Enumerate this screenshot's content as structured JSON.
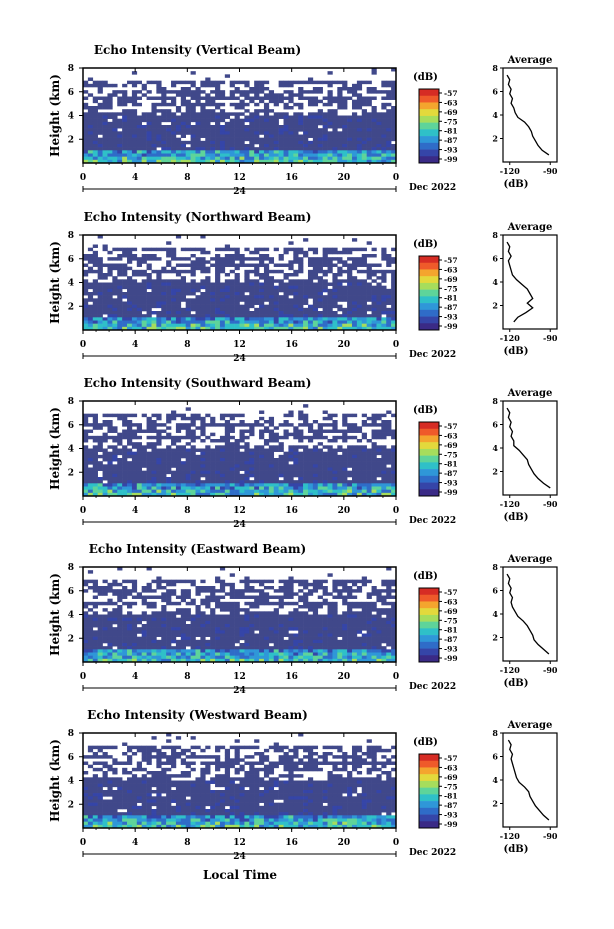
{
  "figure": {
    "date_label": "Dec 2022",
    "xlabel_bottom": "Local Time",
    "day_label": "24"
  },
  "colorbar": {
    "unit": "(dB)",
    "ticks": [
      "-57",
      "-63",
      "-69",
      "-75",
      "-81",
      "-87",
      "-93",
      "-99"
    ]
  },
  "colors": {
    "frame": "#000000",
    "background": "#ffffff",
    "echo_base": "#40488a",
    "scale": [
      "#3a2a86",
      "#3545a8",
      "#2f6cc8",
      "#2f97d8",
      "#2fc0c8",
      "#5ed49a",
      "#a6dd5c",
      "#e3d93c",
      "#f4a52e",
      "#ef5a2a",
      "#d62c24"
    ]
  },
  "chart_data": [
    {
      "type": "heatmap",
      "title": "Echo Intensity (Vertical Beam)",
      "ylabel": "Height (km)",
      "x_ticks": [
        "0",
        "4",
        "8",
        "12",
        "16",
        "20",
        "0"
      ],
      "y_ticks": [
        "2",
        "4",
        "6",
        "8"
      ],
      "xlim": [
        0,
        24
      ],
      "ylim": [
        0,
        8
      ],
      "z_unit": "dB",
      "z_range": [
        -99,
        -57
      ],
      "profile": {
        "title": "Average",
        "xlabel": "(dB)",
        "x_ticks": [
          "-120",
          "-90"
        ],
        "xlim": [
          -125,
          -85
        ],
        "y_ticks": [
          "2",
          "4",
          "6",
          "8"
        ],
        "ylim": [
          0,
          8
        ],
        "height": [
          0.6,
          1.0,
          1.4,
          1.8,
          2.2,
          2.6,
          3.0,
          3.4,
          3.8,
          4.2,
          4.6,
          5.0,
          5.4,
          5.8,
          6.2,
          6.6,
          7.0,
          7.4
        ],
        "value": [
          -91,
          -96,
          -99,
          -101,
          -103,
          -104,
          -106,
          -109,
          -114,
          -116,
          -117,
          -119,
          -118,
          -120,
          -119,
          -121,
          -120,
          -122
        ]
      }
    },
    {
      "type": "heatmap",
      "title": "Echo Intensity (Northward Beam)",
      "ylabel": "Height (km)",
      "x_ticks": [
        "0",
        "4",
        "8",
        "12",
        "16",
        "20",
        "0"
      ],
      "y_ticks": [
        "2",
        "4",
        "6",
        "8"
      ],
      "xlim": [
        0,
        24
      ],
      "ylim": [
        0,
        8
      ],
      "z_unit": "dB",
      "z_range": [
        -99,
        -57
      ],
      "profile": {
        "title": "Average",
        "xlabel": "(dB)",
        "x_ticks": [
          "-120",
          "-90"
        ],
        "xlim": [
          -125,
          -85
        ],
        "y_ticks": [
          "2",
          "4",
          "6",
          "8"
        ],
        "ylim": [
          0,
          8
        ],
        "height": [
          0.6,
          1.0,
          1.4,
          1.8,
          2.2,
          2.6,
          3.0,
          3.4,
          3.8,
          4.2,
          4.6,
          5.0,
          5.4,
          5.8,
          6.2,
          6.6,
          7.0,
          7.4
        ],
        "value": [
          -117,
          -114,
          -108,
          -103,
          -107,
          -103,
          -105,
          -107,
          -111,
          -115,
          -118,
          -119,
          -120,
          -121,
          -119,
          -121,
          -120,
          -122
        ]
      }
    },
    {
      "type": "heatmap",
      "title": "Echo Intensity (Southward Beam)",
      "ylabel": "Height (km)",
      "x_ticks": [
        "0",
        "4",
        "8",
        "12",
        "16",
        "20",
        "0"
      ],
      "y_ticks": [
        "2",
        "4",
        "6",
        "8"
      ],
      "xlim": [
        0,
        24
      ],
      "ylim": [
        0,
        8
      ],
      "z_unit": "dB",
      "z_range": [
        -99,
        -57
      ],
      "profile": {
        "title": "Average",
        "xlabel": "(dB)",
        "x_ticks": [
          "-120",
          "-90"
        ],
        "xlim": [
          -125,
          -85
        ],
        "y_ticks": [
          "2",
          "4",
          "6",
          "8"
        ],
        "ylim": [
          0,
          8
        ],
        "height": [
          0.6,
          1.0,
          1.4,
          1.8,
          2.2,
          2.6,
          3.0,
          3.4,
          3.8,
          4.2,
          4.6,
          5.0,
          5.4,
          5.8,
          6.2,
          6.6,
          7.0,
          7.4
        ],
        "value": [
          -90,
          -95,
          -99,
          -102,
          -104,
          -106,
          -107,
          -110,
          -113,
          -117,
          -117,
          -119,
          -118,
          -120,
          -119,
          -121,
          -120,
          -122
        ]
      }
    },
    {
      "type": "heatmap",
      "title": "Echo Intensity (Eastward Beam)",
      "ylabel": "Height (km)",
      "x_ticks": [
        "0",
        "4",
        "8",
        "12",
        "16",
        "20",
        "0"
      ],
      "y_ticks": [
        "2",
        "4",
        "6",
        "8"
      ],
      "xlim": [
        0,
        24
      ],
      "ylim": [
        0,
        8
      ],
      "z_unit": "dB",
      "z_range": [
        -99,
        -57
      ],
      "profile": {
        "title": "Average",
        "xlabel": "(dB)",
        "x_ticks": [
          "-120",
          "-90"
        ],
        "xlim": [
          -125,
          -85
        ],
        "y_ticks": [
          "2",
          "4",
          "6",
          "8"
        ],
        "ylim": [
          0,
          8
        ],
        "height": [
          0.6,
          1.0,
          1.4,
          1.8,
          2.2,
          2.6,
          3.0,
          3.4,
          3.8,
          4.2,
          4.6,
          5.0,
          5.4,
          5.8,
          6.2,
          6.6,
          7.0,
          7.4
        ],
        "value": [
          -91,
          -95,
          -99,
          -102,
          -103,
          -105,
          -107,
          -110,
          -114,
          -116,
          -118,
          -119,
          -118,
          -120,
          -119,
          -121,
          -120,
          -122
        ]
      }
    },
    {
      "type": "heatmap",
      "title": "Echo Intensity (Westward Beam)",
      "ylabel": "Height (km)",
      "x_ticks": [
        "0",
        "4",
        "8",
        "12",
        "16",
        "20",
        "0"
      ],
      "y_ticks": [
        "2",
        "4",
        "6",
        "8"
      ],
      "xlim": [
        0,
        24
      ],
      "ylim": [
        0,
        8
      ],
      "z_unit": "dB",
      "z_range": [
        -99,
        -57
      ],
      "profile": {
        "title": "Average",
        "xlabel": "(dB)",
        "x_ticks": [
          "-120",
          "-90"
        ],
        "xlim": [
          -125,
          -85
        ],
        "y_ticks": [
          "2",
          "4",
          "6",
          "8"
        ],
        "ylim": [
          0,
          8
        ],
        "height": [
          0.6,
          1.0,
          1.4,
          1.8,
          2.2,
          2.6,
          3.0,
          3.4,
          3.8,
          4.2,
          4.6,
          5.0,
          5.4,
          5.8,
          6.2,
          6.6,
          7.0,
          7.4
        ],
        "value": [
          -91,
          -95,
          -98,
          -101,
          -103,
          -105,
          -106,
          -109,
          -113,
          -115,
          -116,
          -117,
          -118,
          -119,
          -118,
          -120,
          -119,
          -121
        ]
      }
    }
  ]
}
